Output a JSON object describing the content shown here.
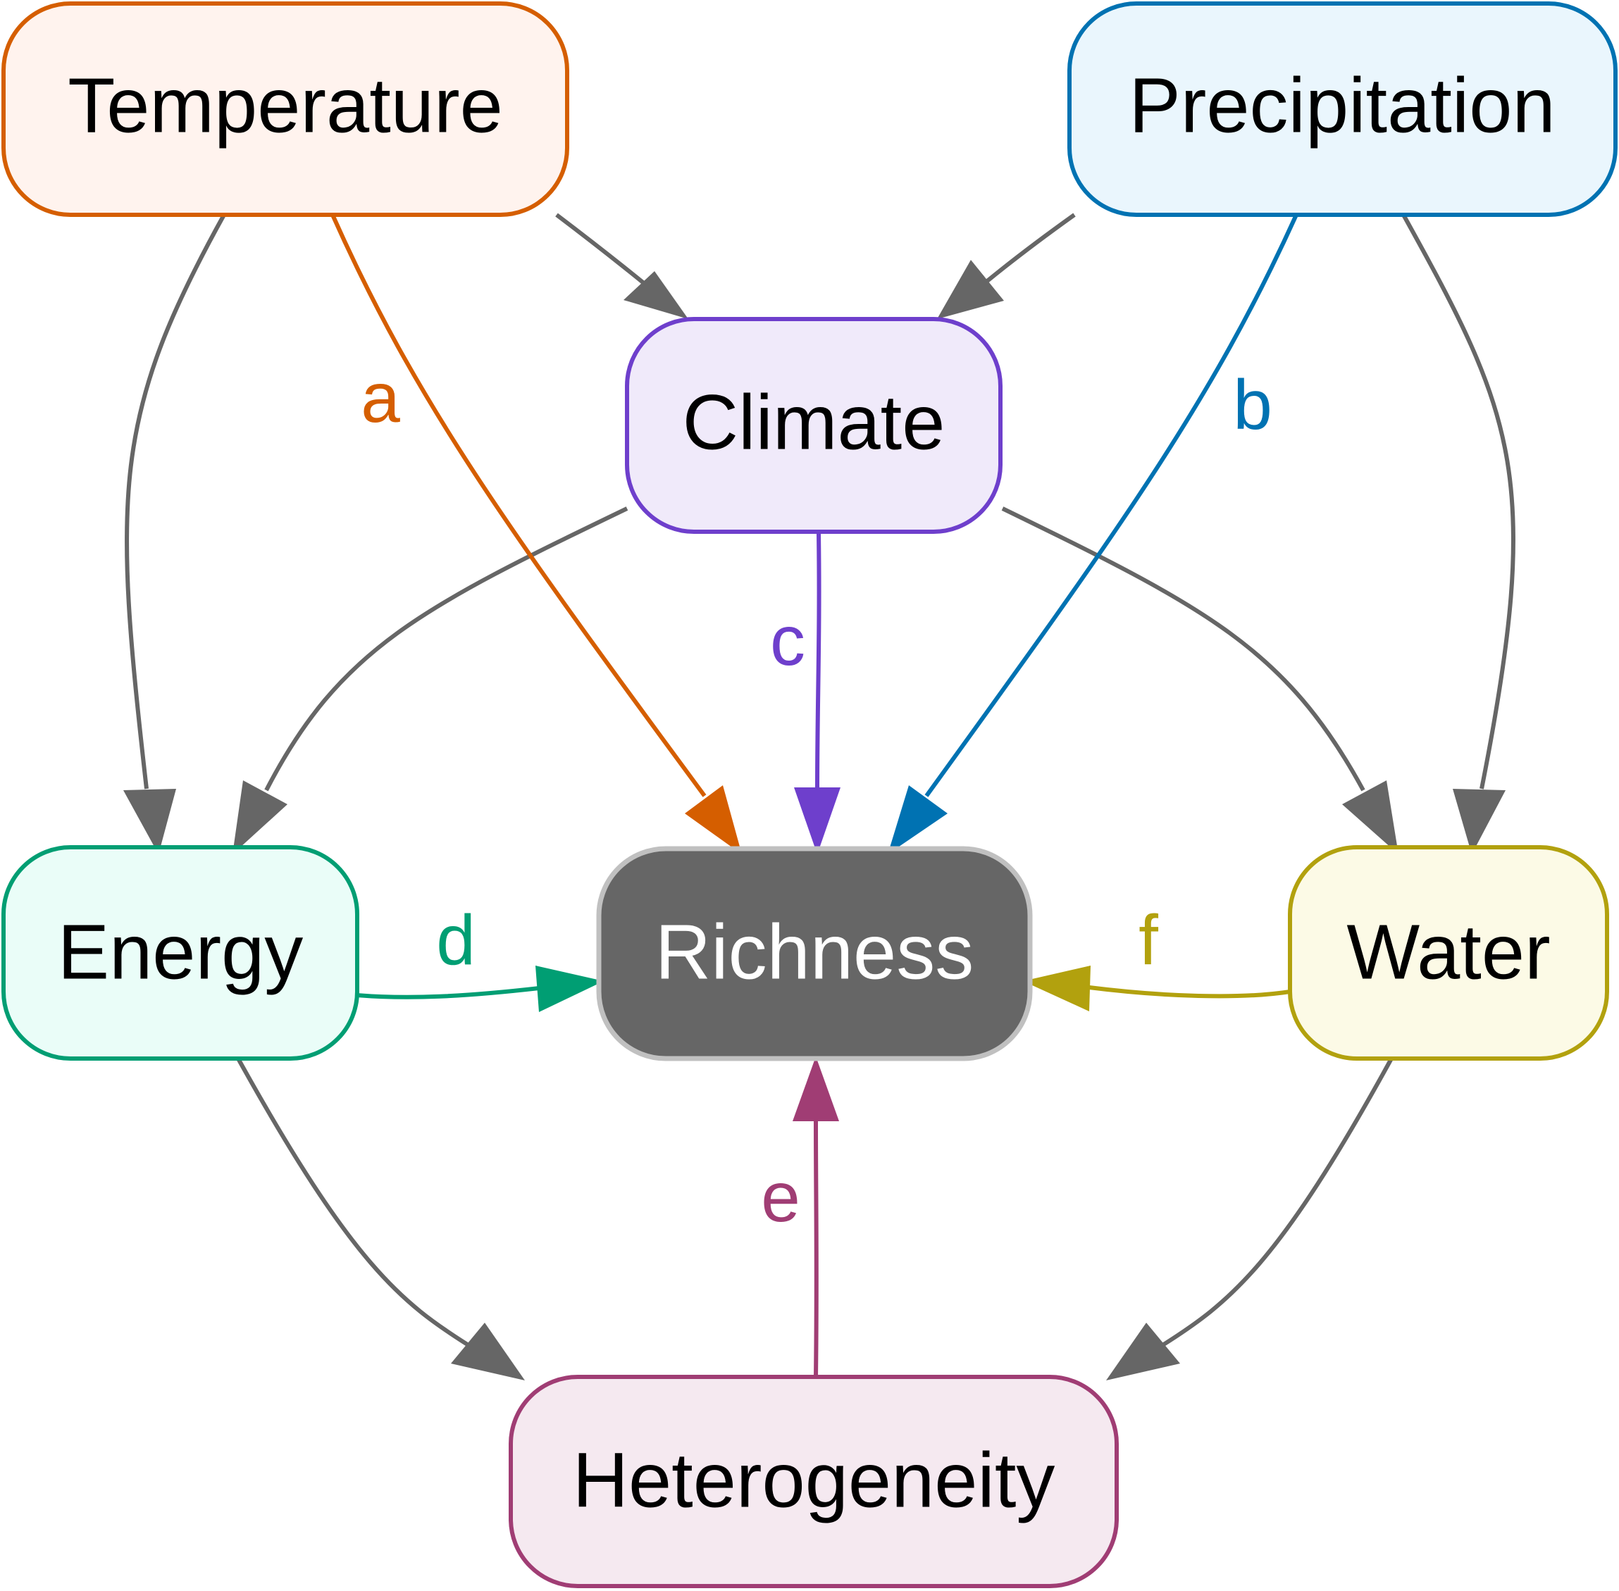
{
  "colors": {
    "arrow_default": "#666666",
    "temperature": "#d55e00",
    "precipitation": "#0072b2",
    "climate": "#6e3fcc",
    "energy": "#009e73",
    "water": "#b2a10e",
    "heterogeneity": "#a03d74",
    "richness_fill": "#666666",
    "richness_border": "#c0c0c0"
  },
  "nodes": {
    "temperature": {
      "label": "Temperature"
    },
    "precipitation": {
      "label": "Precipitation"
    },
    "climate": {
      "label": "Climate"
    },
    "energy": {
      "label": "Energy"
    },
    "richness": {
      "label": "Richness"
    },
    "water": {
      "label": "Water"
    },
    "heterogeneity": {
      "label": "Heterogeneity"
    }
  },
  "edges": [
    {
      "from": "Temperature",
      "to": "Climate",
      "label": ""
    },
    {
      "from": "Precipitation",
      "to": "Climate",
      "label": ""
    },
    {
      "from": "Temperature",
      "to": "Energy",
      "label": ""
    },
    {
      "from": "Precipitation",
      "to": "Water",
      "label": ""
    },
    {
      "from": "Climate",
      "to": "Energy",
      "label": ""
    },
    {
      "from": "Climate",
      "to": "Water",
      "label": ""
    },
    {
      "from": "Temperature",
      "to": "Richness",
      "label": "a"
    },
    {
      "from": "Precipitation",
      "to": "Richness",
      "label": "b"
    },
    {
      "from": "Climate",
      "to": "Richness",
      "label": "c"
    },
    {
      "from": "Energy",
      "to": "Richness",
      "label": "d"
    },
    {
      "from": "Heterogeneity",
      "to": "Richness",
      "label": "e"
    },
    {
      "from": "Water",
      "to": "Richness",
      "label": "f"
    },
    {
      "from": "Energy",
      "to": "Heterogeneity",
      "label": ""
    },
    {
      "from": "Water",
      "to": "Heterogeneity",
      "label": ""
    }
  ]
}
